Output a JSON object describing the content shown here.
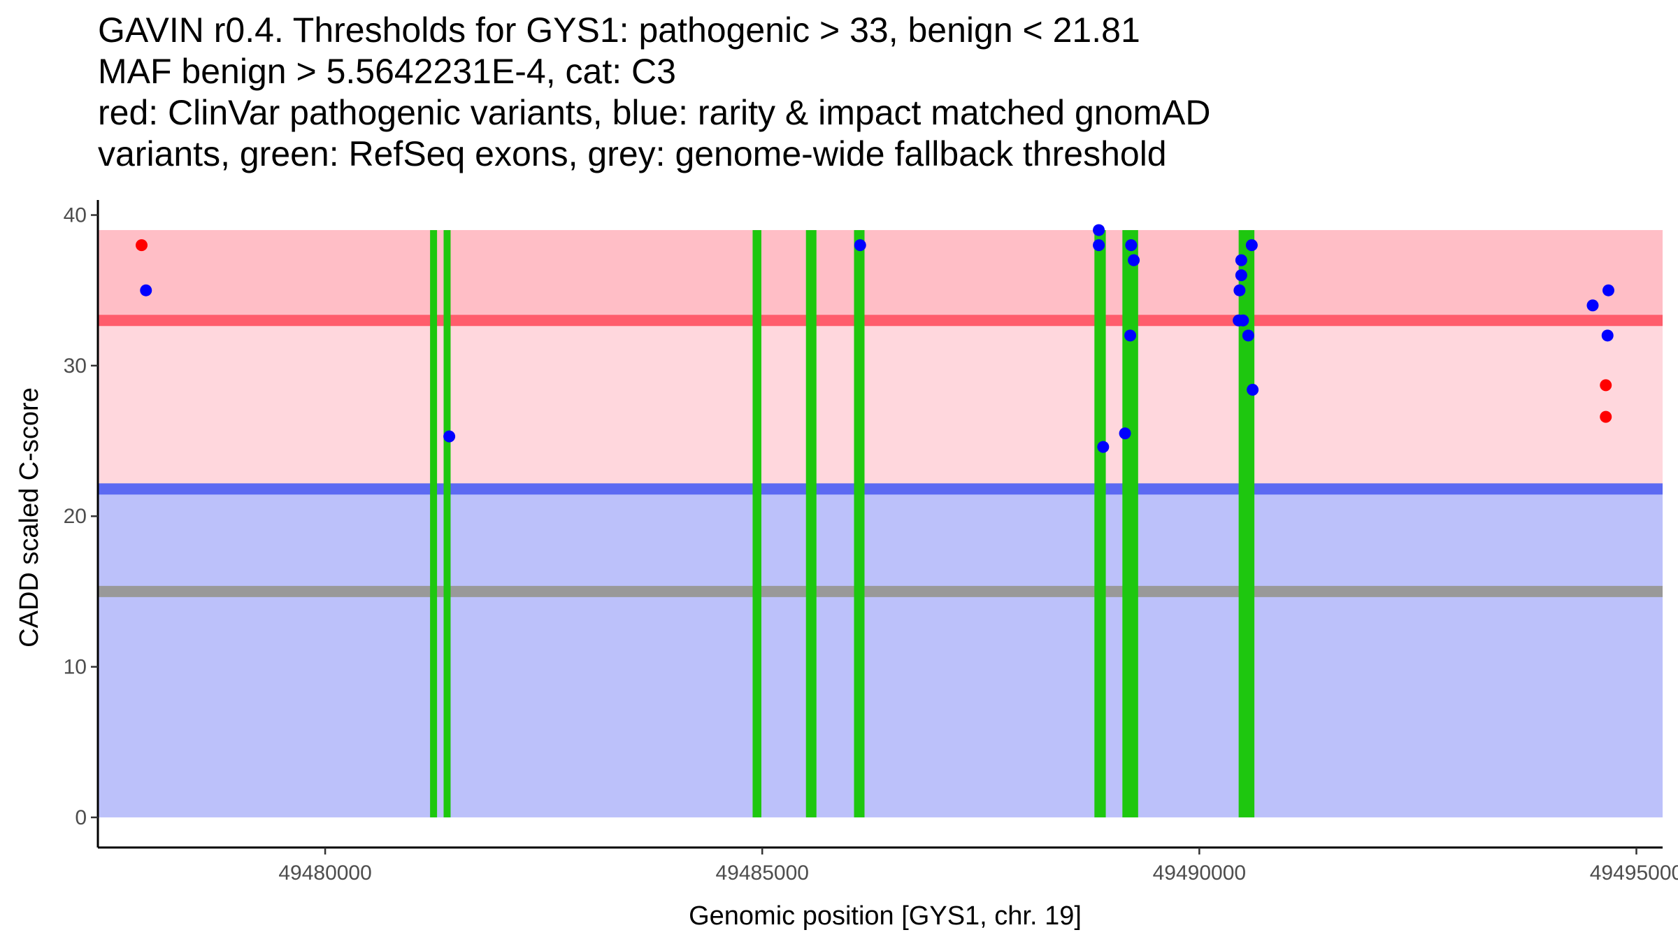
{
  "chart_data": {
    "type": "scatter",
    "title_lines": [
      "GAVIN r0.4. Thresholds for GYS1: pathogenic > 33, benign < 21.81",
      "MAF benign > 5.5642231E-4, cat: C3",
      "red: ClinVar pathogenic variants, blue: rarity & impact matched gnomAD",
      "variants, green: RefSeq exons, grey: genome-wide fallback threshold"
    ],
    "xlabel": "Genomic position [GYS1, chr. 19]",
    "ylabel": "CADD scaled C-score",
    "xlim": [
      49477400,
      49495300
    ],
    "ylim": [
      -2,
      41
    ],
    "x_ticks": [
      49480000,
      49485000,
      49490000,
      49495000
    ],
    "x_tick_labels": [
      "49480000",
      "49485000",
      "49490000",
      "49495000"
    ],
    "y_ticks": [
      0,
      10,
      20,
      30,
      40
    ],
    "y_tick_labels": [
      "0",
      "10",
      "20",
      "30",
      "40"
    ],
    "x_range": [
      49477400,
      49495300
    ],
    "bands": [
      {
        "name": "benign-region",
        "ymin": 0,
        "ymax": 21.81,
        "color": "#bcc1fa"
      },
      {
        "name": "pathogenic-region",
        "ymin": 21.81,
        "ymax": 39,
        "color": "#ffd7dd"
      },
      {
        "name": "pathogenic-high-region",
        "ymin": 33,
        "ymax": 39,
        "color": "#ffbec6"
      }
    ],
    "thresholds": [
      {
        "name": "fallback-threshold-line",
        "y": 15,
        "color": "#999999"
      },
      {
        "name": "benign-threshold-line",
        "y": 21.81,
        "color": "#5c6af2"
      },
      {
        "name": "pathogenic-threshold-line",
        "y": 33,
        "color": "#ff5d6c"
      }
    ],
    "exons": [
      {
        "start": 49481200,
        "end": 49481280
      },
      {
        "start": 49481360,
        "end": 49481430
      },
      {
        "start": 49484890,
        "end": 49484990
      },
      {
        "start": 49485500,
        "end": 49485620
      },
      {
        "start": 49486050,
        "end": 49486170
      },
      {
        "start": 49488800,
        "end": 49488930
      },
      {
        "start": 49489120,
        "end": 49489300
      },
      {
        "start": 49490450,
        "end": 49490630
      }
    ],
    "exon_ymax": 39,
    "exon_color": "#1ec70f",
    "series": [
      {
        "name": "ClinVar pathogenic",
        "color": "#ff0000",
        "points": [
          {
            "x": 49477900,
            "y": 38
          },
          {
            "x": 49494650,
            "y": 28.7
          },
          {
            "x": 49494650,
            "y": 26.6
          }
        ]
      },
      {
        "name": "gnomAD matched",
        "color": "#0000ff",
        "points": [
          {
            "x": 49477950,
            "y": 35
          },
          {
            "x": 49481420,
            "y": 25.3
          },
          {
            "x": 49486120,
            "y": 38
          },
          {
            "x": 49488850,
            "y": 39
          },
          {
            "x": 49488850,
            "y": 38
          },
          {
            "x": 49488900,
            "y": 24.6
          },
          {
            "x": 49489150,
            "y": 25.5
          },
          {
            "x": 49489210,
            "y": 32
          },
          {
            "x": 49489220,
            "y": 38
          },
          {
            "x": 49489250,
            "y": 37
          },
          {
            "x": 49490480,
            "y": 37
          },
          {
            "x": 49490480,
            "y": 36
          },
          {
            "x": 49490460,
            "y": 35
          },
          {
            "x": 49490450,
            "y": 33
          },
          {
            "x": 49490500,
            "y": 33
          },
          {
            "x": 49490560,
            "y": 32
          },
          {
            "x": 49490600,
            "y": 38
          },
          {
            "x": 49490610,
            "y": 28.4
          },
          {
            "x": 49494500,
            "y": 34
          },
          {
            "x": 49494680,
            "y": 35
          },
          {
            "x": 49494670,
            "y": 32
          }
        ]
      }
    ]
  }
}
